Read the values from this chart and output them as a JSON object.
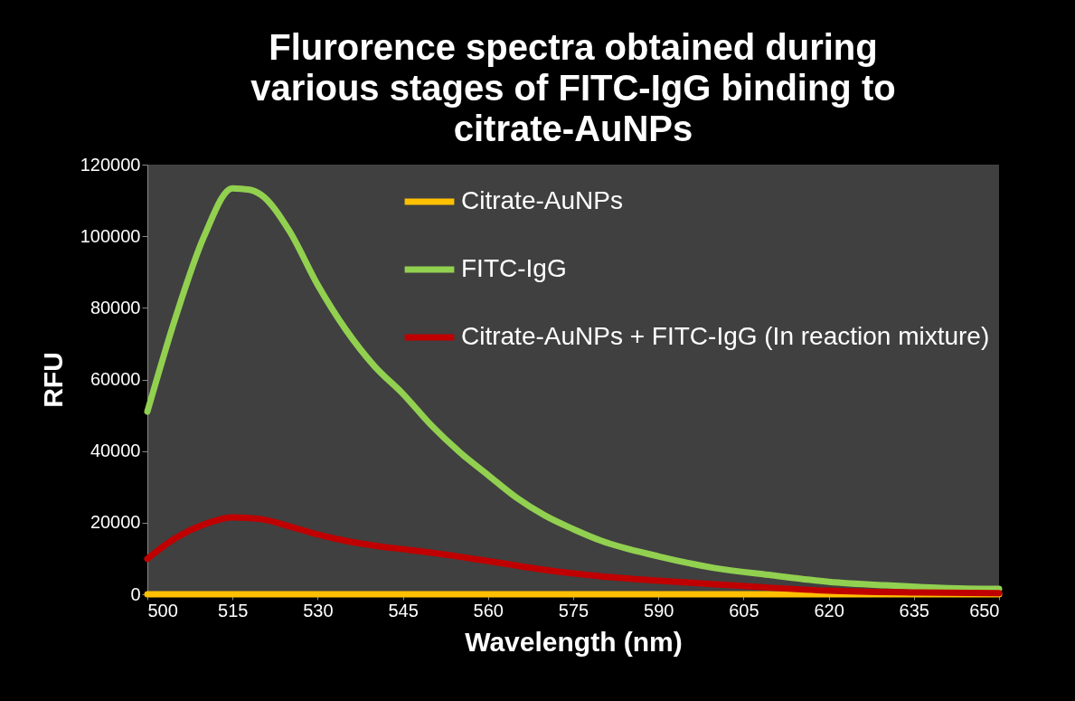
{
  "chart_data": {
    "type": "line",
    "title": "Flurorence spectra obtained during various stages of FITC-IgG binding to citrate-AuNPs",
    "xlabel": "Wavelength (nm)",
    "ylabel": "RFU",
    "xlim": [
      500,
      650
    ],
    "xticks": [
      500,
      515,
      530,
      545,
      560,
      575,
      590,
      605,
      620,
      635,
      650
    ],
    "ylim": [
      0,
      120000
    ],
    "yticks": [
      0,
      20000,
      40000,
      60000,
      80000,
      100000,
      120000
    ],
    "grid": false,
    "legend": "top right",
    "marker": "none",
    "line_style": "solid",
    "series": [
      {
        "name": "Citrate-AuNPs",
        "color": "#ffc000",
        "x": [
          500,
          650
        ],
        "values": [
          0,
          0
        ]
      },
      {
        "name": "FITC-IgG",
        "color": "#92d050",
        "x": [
          500,
          505,
          510,
          515,
          518,
          520,
          525,
          530,
          535,
          540,
          545,
          550,
          555,
          560,
          565,
          570,
          575,
          580,
          590,
          600,
          610,
          620,
          630,
          640,
          650
        ],
        "values": [
          51000,
          77500,
          100000,
          113400,
          113000,
          111600,
          101500,
          86400,
          73800,
          63700,
          56000,
          47200,
          39700,
          33300,
          27000,
          22000,
          18200,
          14900,
          10600,
          7300,
          5300,
          3500,
          2500,
          1800,
          1500
        ]
      },
      {
        "name": "Citrate-AuNPs + FITC-IgG (In reaction mixture)",
        "color": "#c00000",
        "x": [
          500,
          505,
          510,
          515,
          520,
          525,
          530,
          535,
          540,
          545,
          550,
          560,
          570,
          580,
          590,
          600,
          610,
          620,
          635,
          650
        ],
        "values": [
          9900,
          15700,
          19500,
          21500,
          21000,
          19000,
          16700,
          14900,
          13600,
          12600,
          11600,
          9300,
          6800,
          5000,
          3800,
          2800,
          1800,
          1000,
          500,
          300
        ]
      }
    ]
  }
}
